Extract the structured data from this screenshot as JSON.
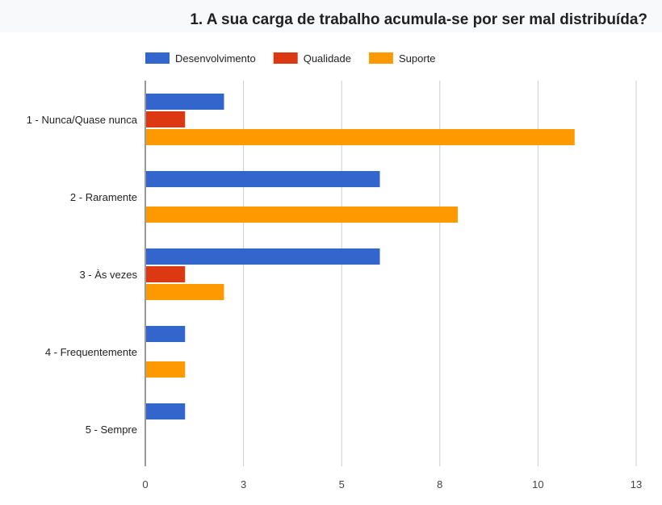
{
  "chart_data": {
    "type": "bar",
    "orientation": "horizontal",
    "title": "1. A sua carga de trabalho acumula-se por ser mal distribuída?",
    "categories": [
      "1 - Nunca/Quase nunca",
      "2 - Raramente",
      "3 - Às vezes",
      "4 - Frequentemente",
      "5 - Sempre"
    ],
    "series": [
      {
        "name": "Desenvolvimento",
        "color": "#3366cc",
        "values": [
          2,
          6,
          6,
          1,
          1
        ]
      },
      {
        "name": "Qualidade",
        "color": "#dc3912",
        "values": [
          1,
          0,
          1,
          0,
          0
        ]
      },
      {
        "name": "Suporte",
        "color": "#ff9900",
        "values": [
          11,
          8,
          2,
          1,
          0
        ]
      }
    ],
    "xlim": [
      0,
      12.6
    ],
    "xticks": [
      "0",
      "3",
      "5",
      "8",
      "10",
      "13"
    ],
    "legend": "top",
    "grid": true
  }
}
